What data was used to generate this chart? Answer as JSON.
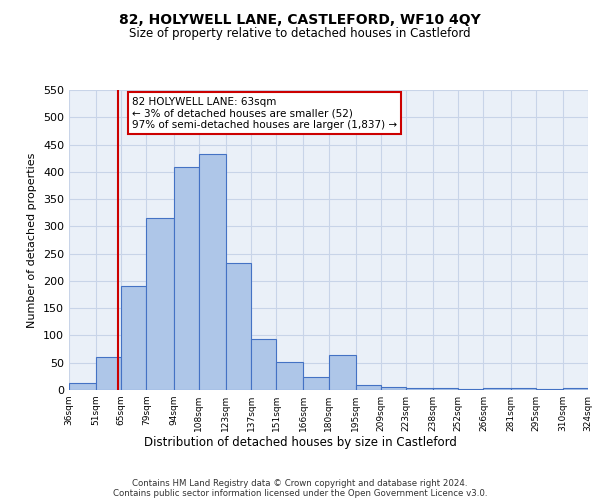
{
  "title": "82, HOLYWELL LANE, CASTLEFORD, WF10 4QY",
  "subtitle": "Size of property relative to detached houses in Castleford",
  "xlabel": "Distribution of detached houses by size in Castleford",
  "ylabel": "Number of detached properties",
  "bar_edges": [
    36,
    51,
    65,
    79,
    94,
    108,
    123,
    137,
    151,
    166,
    180,
    195,
    209,
    223,
    238,
    252,
    266,
    281,
    295,
    310,
    324
  ],
  "bar_heights": [
    12,
    60,
    190,
    315,
    408,
    432,
    233,
    94,
    52,
    24,
    65,
    10,
    5,
    3,
    4,
    2,
    3,
    3,
    2,
    4
  ],
  "bar_color": "#aec6e8",
  "bar_edge_color": "#4472c4",
  "property_line_x": 63,
  "property_line_color": "#cc0000",
  "ann_line1": "82 HOLYWELL LANE: 63sqm",
  "ann_line2": "← 3% of detached houses are smaller (52)",
  "ann_line3": "97% of semi-detached houses are larger (1,837) →",
  "annotation_box_color": "#cc0000",
  "ylim": [
    0,
    550
  ],
  "yticks": [
    0,
    50,
    100,
    150,
    200,
    250,
    300,
    350,
    400,
    450,
    500,
    550
  ],
  "grid_color": "#c8d4e8",
  "background_color": "#eaf0f8",
  "footer_line1": "Contains HM Land Registry data © Crown copyright and database right 2024.",
  "footer_line2": "Contains public sector information licensed under the Open Government Licence v3.0.",
  "tick_labels": [
    "36sqm",
    "51sqm",
    "65sqm",
    "79sqm",
    "94sqm",
    "108sqm",
    "123sqm",
    "137sqm",
    "151sqm",
    "166sqm",
    "180sqm",
    "195sqm",
    "209sqm",
    "223sqm",
    "238sqm",
    "252sqm",
    "266sqm",
    "281sqm",
    "295sqm",
    "310sqm",
    "324sqm"
  ]
}
